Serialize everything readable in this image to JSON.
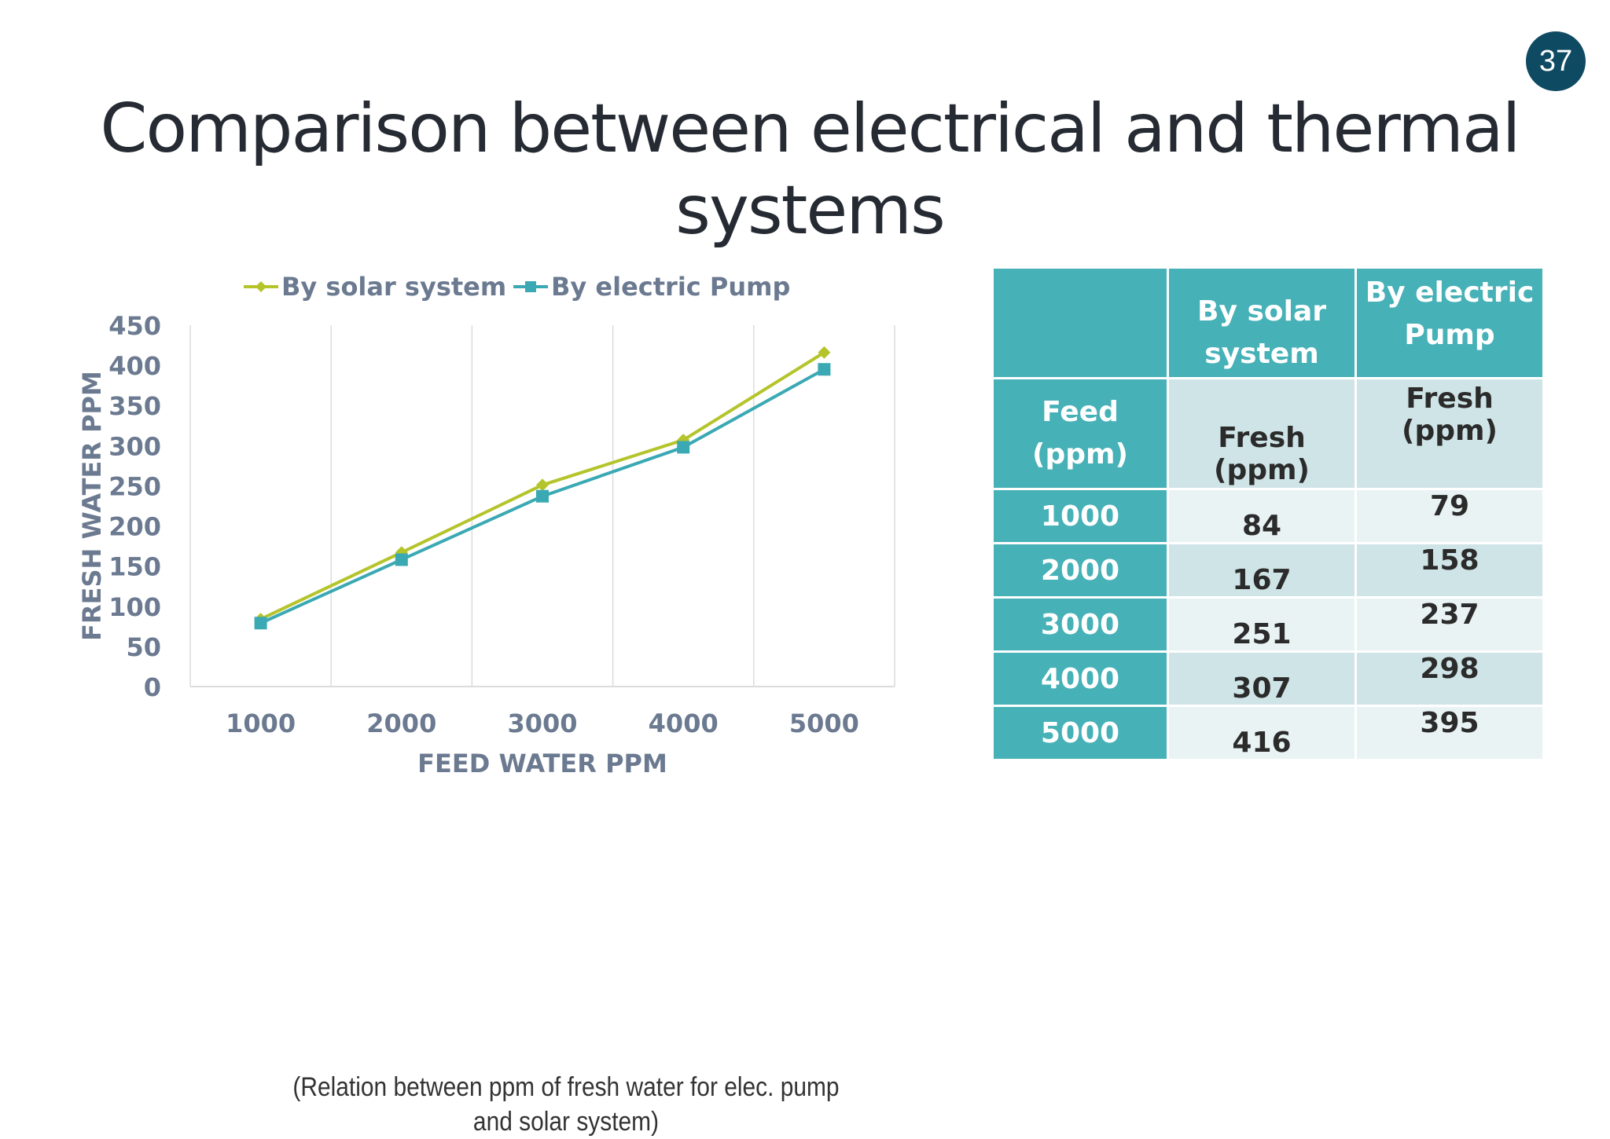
{
  "slide": {
    "page_number": "37",
    "title": "Comparison between electrical and thermal systems",
    "caption": "(Relation between ppm of fresh water for elec. pump and solar system)"
  },
  "colors": {
    "solar": "#b4c42a",
    "electric": "#3aa9b3",
    "axis_text": "#6b7a90",
    "grid": "#dcdcdc",
    "table_header": "#46b1b7",
    "page_badge": "#0f4a63"
  },
  "chart_data": {
    "type": "line",
    "title": "",
    "xlabel": "FEED WATER PPM",
    "ylabel": "FRESH WATER PPM",
    "categories": [
      "1000",
      "2000",
      "3000",
      "4000",
      "5000"
    ],
    "y_ticks": [
      "0",
      "50",
      "100",
      "150",
      "200",
      "250",
      "300",
      "350",
      "400",
      "450"
    ],
    "ylim": [
      0,
      450
    ],
    "grid": "vertical",
    "legend_position": "top",
    "series": [
      {
        "name": "By solar system",
        "marker": "diamond",
        "values": [
          84,
          167,
          251,
          307,
          416
        ]
      },
      {
        "name": "By electric Pump",
        "marker": "square",
        "values": [
          79,
          158,
          237,
          298,
          395
        ]
      }
    ]
  },
  "table": {
    "col_headers": [
      "",
      "By solar system",
      "By electric Pump"
    ],
    "sub_headers": [
      "Feed (ppm)",
      "Fresh (ppm)",
      "Fresh (ppm)"
    ],
    "rows": [
      {
        "feed": "1000",
        "solar": "84",
        "electric": "79"
      },
      {
        "feed": "2000",
        "solar": "167",
        "electric": "158"
      },
      {
        "feed": "3000",
        "solar": "251",
        "electric": "237"
      },
      {
        "feed": "4000",
        "solar": "307",
        "electric": "298"
      },
      {
        "feed": "5000",
        "solar": "416",
        "electric": "395"
      }
    ]
  }
}
